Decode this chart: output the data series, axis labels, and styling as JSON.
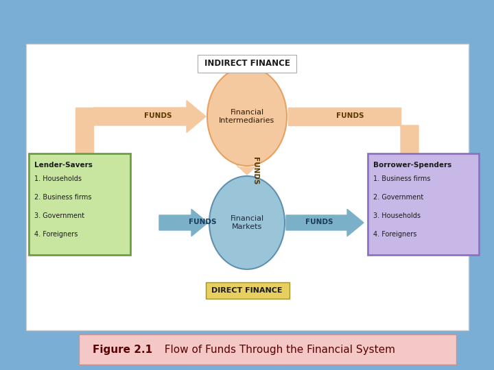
{
  "bg_color": "#7baed4",
  "panel_bg": "#ffffff",
  "panel_l": 0.055,
  "panel_r": 0.955,
  "panel_t": 0.935,
  "panel_b": 0.115,
  "indirect_label": "INDIRECT FINANCE",
  "direct_label": "DIRECT FINANCE",
  "fi_label": "Financial\nIntermediaries",
  "fm_label": "Financial\nMarkets",
  "fi_color": "#f5c9a0",
  "fi_edge": "#e8a060",
  "fm_color": "#9ac4d8",
  "fm_edge": "#6090b0",
  "arrow_peach": "#f5c9a0",
  "arrow_blue": "#7ab0c8",
  "funds_color_peach": "#5a3800",
  "funds_color_blue": "#1a3a5a",
  "lender_bg": "#c8e6a0",
  "lender_edge": "#6aa040",
  "borrower_bg": "#c8b8e8",
  "borrower_edge": "#9070c0",
  "caption_bg": "#f5c8c8",
  "caption_edge": "#d09090",
  "fig_label_bold": "Figure 2.1",
  "fig_label_rest": "  Flow of Funds Through the Financial System",
  "lender_title": "Lender-Savers",
  "lender_items": [
    "1. Households",
    "2. Business firms",
    "3. Government",
    "4. Foreigners"
  ],
  "borrower_title": "Borrower-Spenders",
  "borrower_items": [
    "1. Business firms",
    "2. Government",
    "3. Households",
    "4. Foreigners"
  ]
}
